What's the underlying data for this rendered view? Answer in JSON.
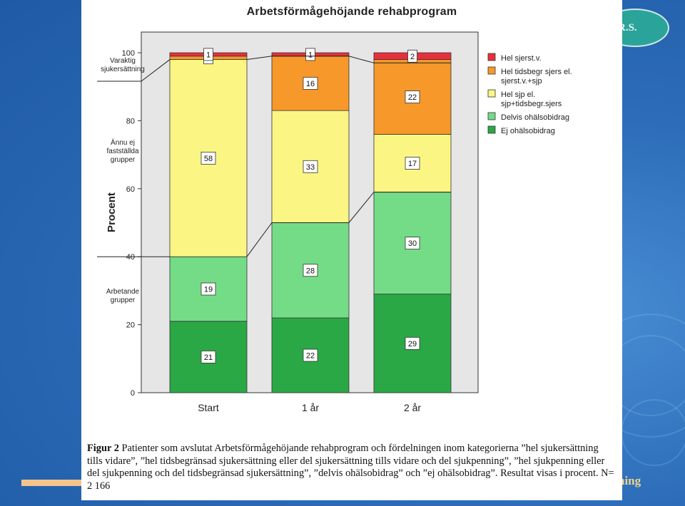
{
  "slide": {
    "badge_text": "R.S.",
    "footer_fragment": "ning"
  },
  "caption": {
    "label": "Figur 2",
    "text": " Patienter som avslutat Arbetsförmågehöjande rehabprogram och fördelningen inom kategorierna ”hel sjukersättning tills vidare”, ”hel tidsbegränsad sjukersättning eller del sjukersättning tills vidare och del sjukpenning”, ”hel sjukpenning eller del sjukpenning och del tidsbegränsad sjukersättning”, ”delvis ohälsobidrag” och ”ej ohälsobidrag”. Resultat visas i procent. N= 2 166"
  },
  "chart_data": {
    "type": "bar",
    "stacked": true,
    "title": "Arbetsförmågehöjande rehabprogram",
    "ylabel": "Procent",
    "xlabel": "",
    "ylim": [
      0,
      100
    ],
    "yticks": [
      0,
      20,
      40,
      60,
      80,
      100
    ],
    "categories": [
      "Start",
      "1 år",
      "2 år"
    ],
    "series": [
      {
        "name": "Ej ohälsobidrag",
        "color": "#2aa845",
        "values": [
          21,
          22,
          29
        ]
      },
      {
        "name": "Delvis ohälsobidrag",
        "color": "#74dc87",
        "values": [
          19,
          28,
          30
        ]
      },
      {
        "name": "Hel sjp el. sjp+tidsbegr.sjers",
        "color": "#fbf683",
        "values": [
          58,
          33,
          17
        ]
      },
      {
        "name": "Hel tidsbegr sjers el. sjerst.v.+sjp",
        "color": "#f7982b",
        "values": [
          1,
          16,
          22
        ]
      },
      {
        "name": "Hel sjerst.v.",
        "color": "#e8303c",
        "values": [
          1,
          1,
          2
        ]
      }
    ],
    "legend": [
      {
        "label": "Hel sjerst.v.",
        "color": "#e8303c"
      },
      {
        "label": "Hel tidsbegr sjers el.",
        "label2": "sjerst.v.+sjp",
        "color": "#f7982b"
      },
      {
        "label": "Hel sjp el.",
        "label2": "sjp+tidsbegr.sjers",
        "color": "#fbf683"
      },
      {
        "label": "Delvis ohälsobidrag",
        "color": "#74dc87"
      },
      {
        "label": "Ej ohälsobidrag",
        "color": "#2aa845"
      }
    ],
    "legend_position": "right",
    "group_annotations": [
      {
        "lines": [
          "Varaktig",
          "sjukersättning"
        ],
        "divider_at": 96
      },
      {
        "lines": [
          "Ännu ej",
          "fastställda",
          "grupper"
        ],
        "divider_at": 40
      },
      {
        "lines": [
          "Arbetande",
          "grupper"
        ]
      }
    ],
    "connector_lines": [
      {
        "name": "Varaktig boundary",
        "values": [
          98,
          99,
          97
        ]
      },
      {
        "name": "Arbetande boundary",
        "values": [
          40,
          50,
          59
        ]
      }
    ]
  }
}
